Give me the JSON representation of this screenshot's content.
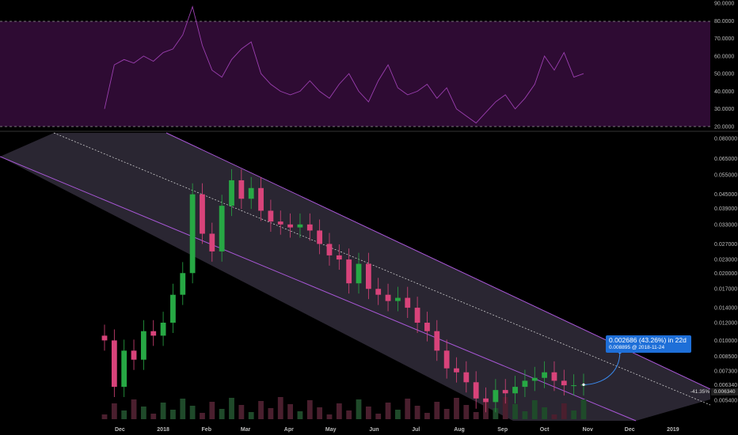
{
  "chart_data": [
    {
      "type": "line",
      "panel": "oscillator",
      "y_ticks": [
        "90.0000",
        "80.0000",
        "70.0000",
        "60.0000",
        "50.0000",
        "40.0000",
        "30.0000",
        "20.0000"
      ],
      "ylim": [
        20,
        90
      ],
      "levels": [
        80,
        20
      ],
      "band_color": "#2e0b33",
      "line_color": "#9b3fb0",
      "x": [
        "2017-11-20",
        "2017-11-27",
        "2017-12-04",
        "2017-12-11",
        "2017-12-18",
        "2017-12-25",
        "2018-01-01",
        "2018-01-08",
        "2018-01-15",
        "2018-01-22",
        "2018-01-29",
        "2018-02-05",
        "2018-02-12",
        "2018-02-19",
        "2018-02-26",
        "2018-03-05",
        "2018-03-12",
        "2018-03-19",
        "2018-03-26",
        "2018-04-02",
        "2018-04-09",
        "2018-04-16",
        "2018-04-23",
        "2018-04-30",
        "2018-05-07",
        "2018-05-14",
        "2018-05-21",
        "2018-05-28",
        "2018-06-04",
        "2018-06-11",
        "2018-06-18",
        "2018-06-25",
        "2018-07-02",
        "2018-07-09",
        "2018-07-16",
        "2018-07-23",
        "2018-07-30",
        "2018-08-06",
        "2018-08-13",
        "2018-08-20",
        "2018-08-27",
        "2018-09-03",
        "2018-09-10",
        "2018-09-17",
        "2018-09-24",
        "2018-10-01",
        "2018-10-08",
        "2018-10-15",
        "2018-10-22",
        "2018-10-29"
      ],
      "values": [
        30,
        55,
        58,
        56,
        60,
        57,
        62,
        64,
        72,
        88,
        66,
        52,
        48,
        58,
        64,
        68,
        50,
        44,
        40,
        38,
        40,
        46,
        40,
        36,
        44,
        50,
        40,
        34,
        46,
        55,
        42,
        38,
        40,
        44,
        36,
        42,
        30,
        26,
        22,
        28,
        34,
        38,
        30,
        36,
        44,
        60,
        52,
        62,
        48,
        50
      ]
    },
    {
      "type": "candlestick",
      "panel": "price",
      "y_ticks": [
        "0.080000",
        "0.065000",
        "0.055000",
        "0.045000",
        "0.039000",
        "0.033000",
        "0.027000",
        "0.023000",
        "0.020000",
        "0.017000",
        "0.014000",
        "0.012000",
        "0.010000",
        "0.008500",
        "0.007300",
        "0.006340",
        "0.005400"
      ],
      "y_scale": "log",
      "ylim": [
        0.0049,
        0.082
      ],
      "x_ticks": [
        "Dec",
        "2018",
        "Feb",
        "Mar",
        "Apr",
        "May",
        "Jun",
        "Jul",
        "Aug",
        "Sep",
        "Oct",
        "Nov",
        "Dec",
        "2019"
      ],
      "up_color": "#27a844",
      "down_color": "#d8437a",
      "channel_fill": "#2a2632",
      "channel_line": "#a857d6",
      "x": [
        "2017-11-20",
        "2017-11-27",
        "2017-12-04",
        "2017-12-11",
        "2017-12-18",
        "2017-12-25",
        "2018-01-01",
        "2018-01-08",
        "2018-01-15",
        "2018-01-22",
        "2018-01-29",
        "2018-02-05",
        "2018-02-12",
        "2018-02-19",
        "2018-02-26",
        "2018-03-05",
        "2018-03-12",
        "2018-03-19",
        "2018-03-26",
        "2018-04-02",
        "2018-04-09",
        "2018-04-16",
        "2018-04-23",
        "2018-04-30",
        "2018-05-07",
        "2018-05-14",
        "2018-05-21",
        "2018-05-28",
        "2018-06-04",
        "2018-06-11",
        "2018-06-18",
        "2018-06-25",
        "2018-07-02",
        "2018-07-09",
        "2018-07-16",
        "2018-07-23",
        "2018-07-30",
        "2018-08-06",
        "2018-08-13",
        "2018-08-20",
        "2018-08-27",
        "2018-09-03",
        "2018-09-10",
        "2018-09-17",
        "2018-09-24",
        "2018-10-01",
        "2018-10-08",
        "2018-10-15",
        "2018-10-22",
        "2018-10-29"
      ],
      "close": [
        0.01,
        0.0062,
        0.009,
        0.0082,
        0.011,
        0.0105,
        0.012,
        0.016,
        0.02,
        0.045,
        0.03,
        0.025,
        0.04,
        0.052,
        0.043,
        0.048,
        0.038,
        0.034,
        0.033,
        0.032,
        0.033,
        0.031,
        0.027,
        0.024,
        0.023,
        0.018,
        0.022,
        0.017,
        0.016,
        0.015,
        0.0155,
        0.014,
        0.012,
        0.011,
        0.009,
        0.0075,
        0.0072,
        0.0065,
        0.0055,
        0.0053,
        0.006,
        0.0058,
        0.0062,
        0.0066,
        0.0068,
        0.0072,
        0.0066,
        0.0063,
        0.0063,
        0.00634
      ],
      "projection": {
        "from": "2018-10-29",
        "to": "2018-11-24",
        "value": 0.008895
      }
    }
  ],
  "callout": {
    "line1": "0.002686 (43.26%) in 22d",
    "line2": "0.008895 @ 2018-11-24"
  },
  "price_badge": "0.006340",
  "pct_badge": "-41.35%"
}
